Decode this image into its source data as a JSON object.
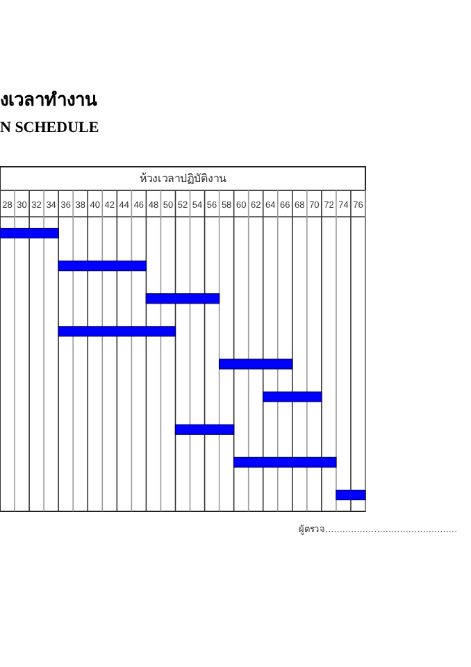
{
  "chart_data": {
    "type": "bar",
    "orientation": "horizontal",
    "title": "งเวลาทำงาน",
    "subtitle": "N SCHEDULE",
    "xlabel": "ห้วงเวลาปฏิบัติงาน",
    "categories": [
      null,
      null,
      null,
      null,
      null,
      null,
      null,
      null,
      null
    ],
    "base": [
      27,
      35,
      47,
      35,
      57,
      63,
      51,
      59,
      73
    ],
    "values": [
      8,
      12,
      10,
      16,
      10,
      8,
      8,
      14,
      4
    ],
    "color": "#0000ff",
    "xlim": [
      27,
      77
    ],
    "xticks": [
      {
        "value": 27,
        "label": null
      },
      {
        "value": 28,
        "label": "28"
      },
      {
        "value": 29,
        "label": null
      },
      {
        "value": 30,
        "label": "30"
      },
      {
        "value": 31,
        "label": null
      },
      {
        "value": 32,
        "label": "32"
      },
      {
        "value": 33,
        "label": null
      },
      {
        "value": 34,
        "label": "34"
      },
      {
        "value": 35,
        "label": null
      },
      {
        "value": 36,
        "label": "36"
      },
      {
        "value": 37,
        "label": null
      },
      {
        "value": 38,
        "label": "38"
      },
      {
        "value": 39,
        "label": null
      },
      {
        "value": 40,
        "label": "40"
      },
      {
        "value": 41,
        "label": null
      },
      {
        "value": 42,
        "label": "42"
      },
      {
        "value": 43,
        "label": null
      },
      {
        "value": 44,
        "label": "44"
      },
      {
        "value": 45,
        "label": null
      },
      {
        "value": 46,
        "label": "46"
      },
      {
        "value": 47,
        "label": null
      },
      {
        "value": 48,
        "label": "48"
      },
      {
        "value": 49,
        "label": null
      },
      {
        "value": 50,
        "label": "50"
      },
      {
        "value": 51,
        "label": null
      },
      {
        "value": 52,
        "label": "52"
      },
      {
        "value": 53,
        "label": null
      },
      {
        "value": 54,
        "label": "54"
      },
      {
        "value": 55,
        "label": null
      },
      {
        "value": 56,
        "label": "56"
      },
      {
        "value": 57,
        "label": null
      },
      {
        "value": 58,
        "label": "58"
      },
      {
        "value": 59,
        "label": null
      },
      {
        "value": 60,
        "label": "60"
      },
      {
        "value": 61,
        "label": null
      },
      {
        "value": 62,
        "label": "62"
      },
      {
        "value": 63,
        "label": null
      },
      {
        "value": 64,
        "label": "64"
      },
      {
        "value": 65,
        "label": null
      },
      {
        "value": 66,
        "label": "66"
      },
      {
        "value": 67,
        "label": null
      },
      {
        "value": 68,
        "label": "68"
      },
      {
        "value": 69,
        "label": null
      },
      {
        "value": 70,
        "label": "70"
      },
      {
        "value": 71,
        "label": null
      },
      {
        "value": 72,
        "label": "72"
      },
      {
        "value": 73,
        "label": null
      },
      {
        "value": 74,
        "label": "74"
      },
      {
        "value": 75,
        "label": null
      },
      {
        "value": 76,
        "label": "76"
      },
      {
        "value": 77,
        "label": null
      }
    ],
    "grid": "x",
    "annotations": [
      "ผู้ตรวจ.............................................."
    ]
  }
}
